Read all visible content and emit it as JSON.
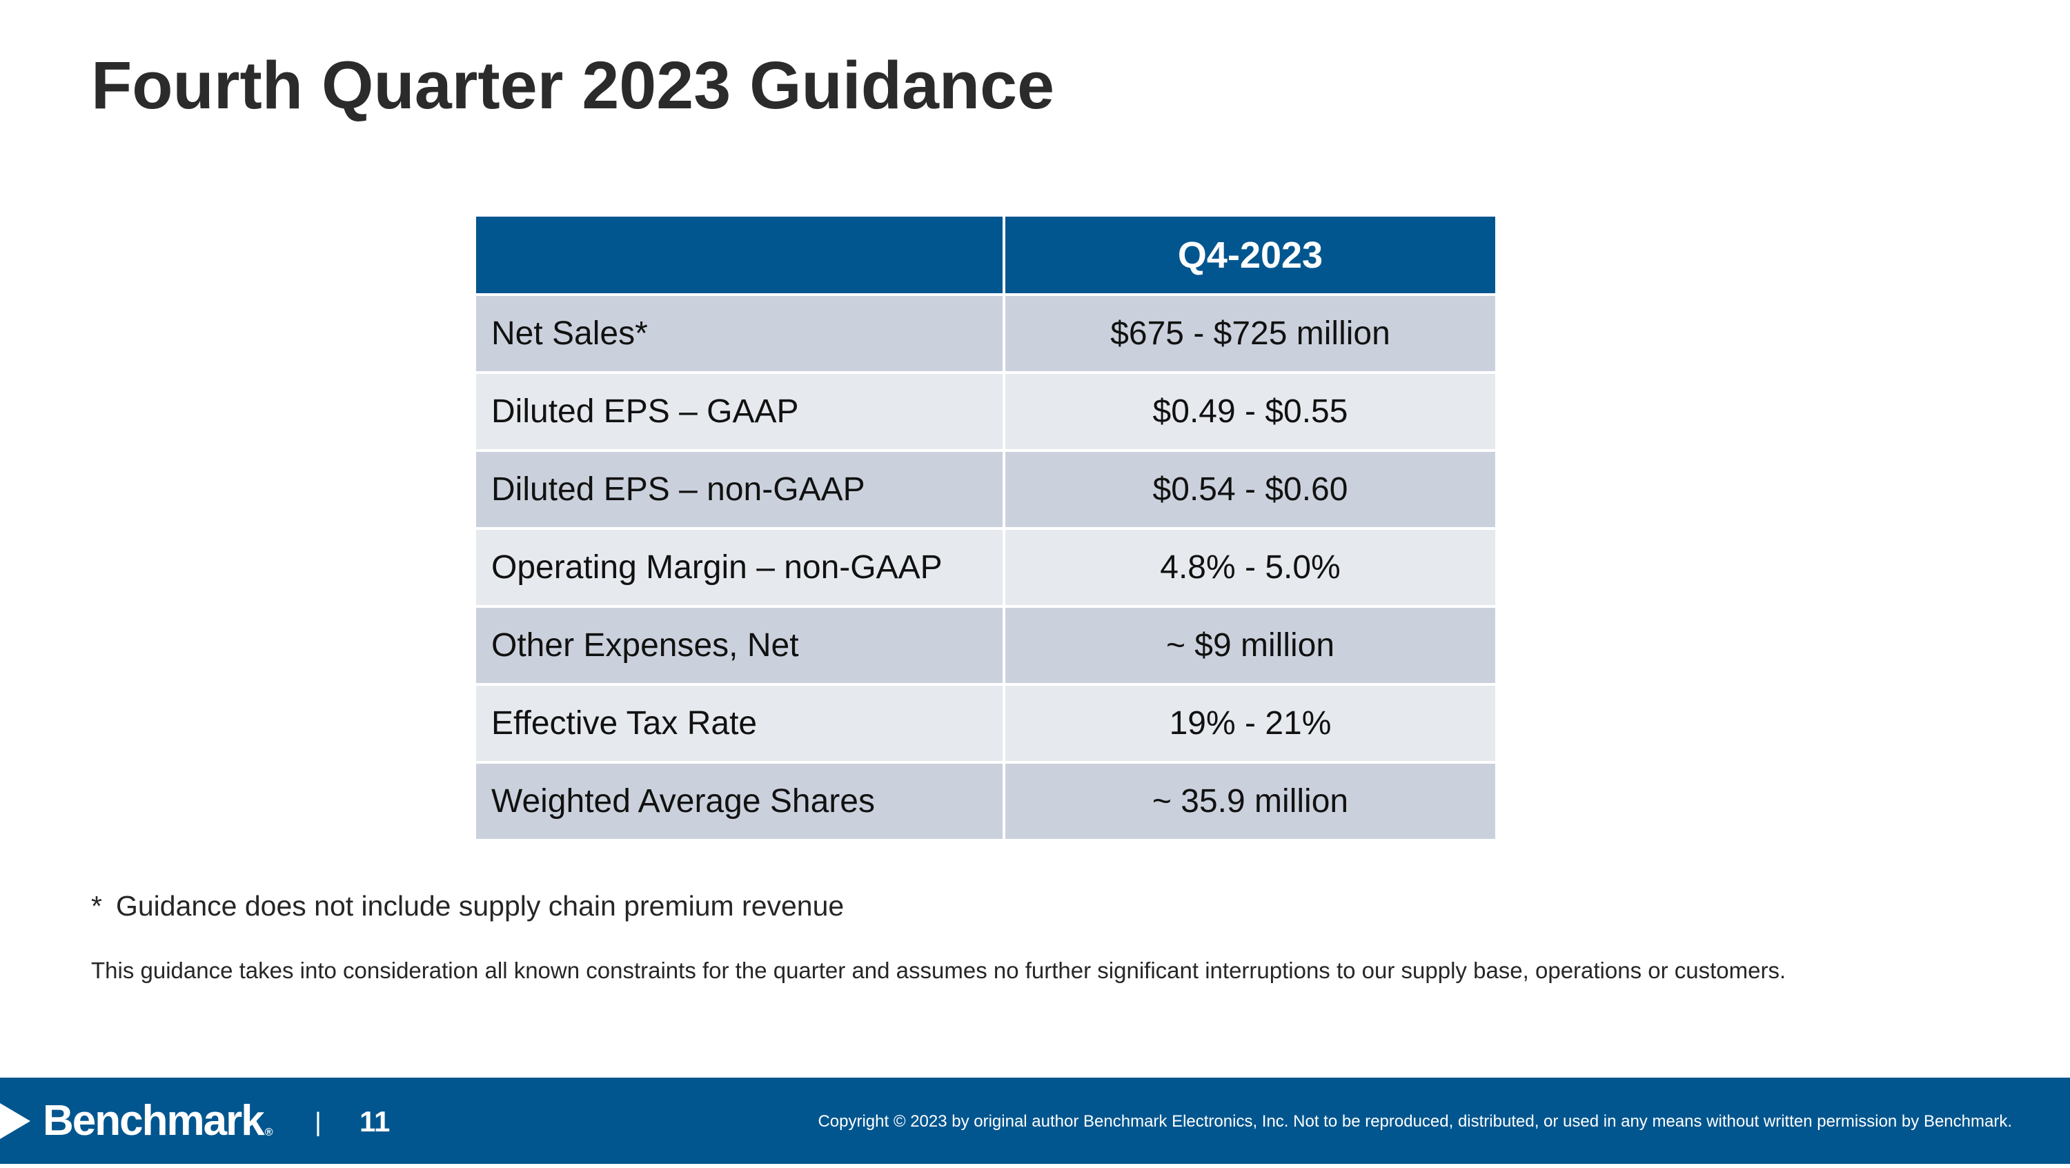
{
  "title": "Fourth Quarter 2023 Guidance",
  "table": {
    "header": {
      "label": "",
      "period": "Q4-2023"
    },
    "rows": [
      {
        "label": "Net Sales*",
        "value": "$675 - $725 million"
      },
      {
        "label": "Diluted EPS – GAAP",
        "value": "$0.49 - $0.55"
      },
      {
        "label": "Diluted EPS – non-GAAP",
        "value": "$0.54 - $0.60"
      },
      {
        "label": "Operating Margin – non-GAAP",
        "value": "4.8% - 5.0%"
      },
      {
        "label": "Other Expenses, Net",
        "value": "~ $9 million"
      },
      {
        "label": "Effective Tax Rate",
        "value": "19% - 21%"
      },
      {
        "label": "Weighted Average Shares",
        "value": "~ 35.9 million"
      }
    ]
  },
  "footnote": {
    "mark": "*",
    "text": "Guidance does not include supply chain premium revenue"
  },
  "disclaimer": "This guidance takes into consideration all known constraints for the quarter and assumes no further significant interruptions to our supply base, operations or customers.",
  "footer": {
    "logo_text": "Benchmark",
    "logo_mark": "®",
    "separator": "|",
    "page_number": "11",
    "copyright": "Copyright © 2023 by original author Benchmark Electronics, Inc. Not to be reproduced, distributed, or used in any means without written permission by Benchmark."
  },
  "colors": {
    "brand_blue": "#02568f",
    "row_dark": "#cbd1dc",
    "row_light": "#e6e9ed"
  }
}
